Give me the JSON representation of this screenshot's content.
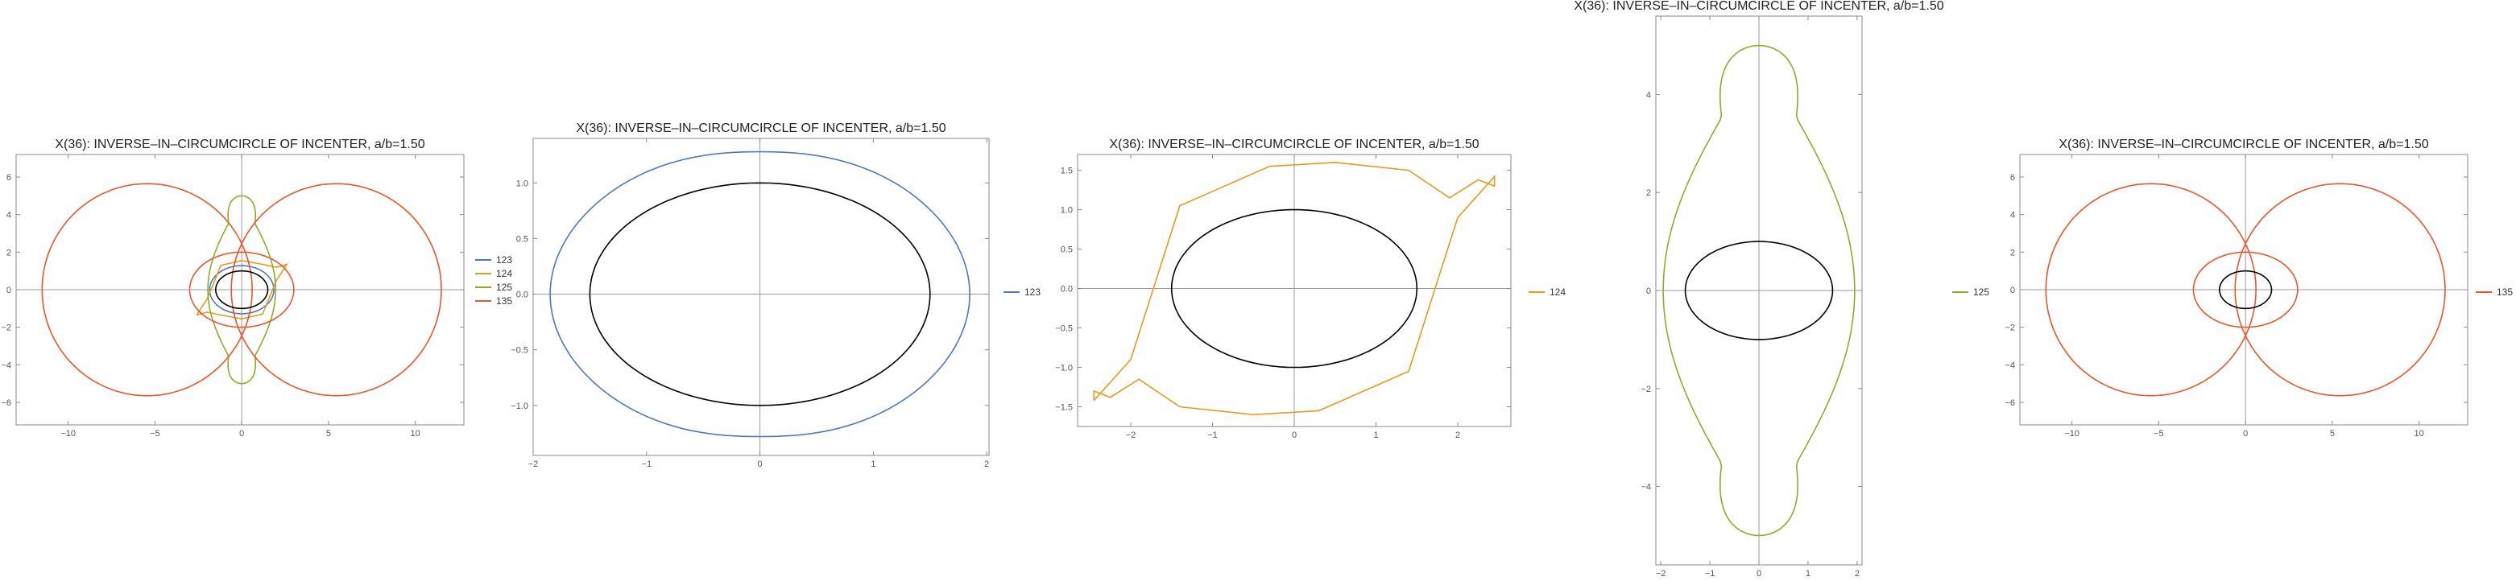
{
  "chart_data": [
    {
      "type": "line",
      "title": "X(36): INVERSE–IN–CIRCUMCIRCLE OF INCENTER, a/b=1.50",
      "xlim": [
        -13.0,
        12.8
      ],
      "ylim": [
        -7.2,
        7.2
      ],
      "xticks": [
        -10,
        -5,
        0,
        5,
        10
      ],
      "yticks": [
        -6,
        -4,
        -2,
        0,
        2,
        4,
        6
      ],
      "grid": false,
      "legend_position": "right",
      "legend": [
        "123",
        "124",
        "125",
        "135"
      ],
      "series": [
        {
          "name": "123",
          "color": "#4a78c4",
          "shape": "ellipse",
          "rx": 1.85,
          "ry": 1.28
        },
        {
          "name": "124",
          "color": "#e69a1e",
          "shape": "skewloop",
          "x": [
            -2.6,
            -2.0,
            -1.2,
            0,
            1.2,
            2.0,
            2.6
          ],
          "y": [
            -1.35,
            -0.5,
            1.3,
            1.55,
            1.35,
            1.2,
            1.35
          ]
        },
        {
          "name": "125",
          "color": "#8aae2a",
          "shape": "figure-eight",
          "y_extent": [
            -5.0,
            5.0
          ],
          "x_extent": [
            -1.95,
            1.95
          ]
        },
        {
          "name": "135",
          "color": "#e8562a",
          "shape": "double-circle",
          "x_extent": [
            -11.5,
            11.5
          ],
          "y_extent": [
            -5.6,
            5.6
          ]
        },
        {
          "name": "",
          "color": "#000000",
          "shape": "ellipse",
          "rx": 1.5,
          "ry": 1.0
        }
      ]
    },
    {
      "type": "line",
      "title": "X(36): INVERSE–IN–CIRCUMCIRCLE OF INCENTER, a/b=1.50",
      "xlim": [
        -2.0,
        2.02
      ],
      "ylim": [
        -1.45,
        1.4
      ],
      "xticks": [
        -2,
        -1,
        0,
        1,
        2
      ],
      "yticks": [
        -1.0,
        -0.5,
        0.0,
        0.5,
        1.0
      ],
      "grid": false,
      "legend_position": "right",
      "legend": [
        "123"
      ],
      "series": [
        {
          "name": "123",
          "color": "#4a78c4",
          "shape": "lemon",
          "x_extent": [
            -1.85,
            1.85
          ],
          "y_extent": [
            -1.28,
            1.28
          ]
        },
        {
          "name": "",
          "color": "#000000",
          "shape": "ellipse",
          "rx": 1.5,
          "ry": 1.0
        }
      ]
    },
    {
      "type": "line",
      "title": "X(36): INVERSE–IN–CIRCUMCIRCLE OF INCENTER, a/b=1.50",
      "xlim": [
        -2.65,
        2.65
      ],
      "ylim": [
        -1.75,
        1.7
      ],
      "xticks": [
        -2,
        -1,
        0,
        1,
        2
      ],
      "yticks": [
        -1.5,
        -1.0,
        -0.5,
        0.0,
        0.5,
        1.0,
        1.5
      ],
      "grid": false,
      "legend_position": "right",
      "legend": [
        "124"
      ],
      "series": [
        {
          "name": "124",
          "color": "#e69a1e",
          "shape": "skewloop",
          "x": [
            -2.45,
            -2.0,
            -1.4,
            -0.3,
            0.5,
            1.4,
            1.9,
            2.25,
            2.45
          ],
          "y": [
            -1.42,
            -0.9,
            1.05,
            1.55,
            1.6,
            1.5,
            1.15,
            1.38,
            1.3
          ]
        },
        {
          "name": "",
          "color": "#000000",
          "shape": "ellipse",
          "rx": 1.5,
          "ry": 1.0
        }
      ]
    },
    {
      "type": "line",
      "title": "X(36): INVERSE–IN–CIRCUMCIRCLE OF INCENTER, a/b=1.50",
      "xlim": [
        -2.1,
        2.1
      ],
      "ylim": [
        -5.6,
        5.6
      ],
      "xticks": [
        -2,
        -1,
        0,
        1,
        2
      ],
      "yticks": [
        -4,
        -2,
        0,
        2,
        4
      ],
      "grid": false,
      "legend_position": "left",
      "legend": [
        "125"
      ],
      "series": [
        {
          "name": "125",
          "color": "#8aae2a",
          "shape": "figure-eight",
          "y_extent": [
            -5.0,
            5.0
          ],
          "x_extent": [
            -1.95,
            1.95
          ]
        },
        {
          "name": "",
          "color": "#000000",
          "shape": "ellipse",
          "rx": 1.5,
          "ry": 1.0
        }
      ]
    },
    {
      "type": "line",
      "title": "X(36): INVERSE–IN–CIRCUMCIRCLE OF INCENTER, a/b=1.50",
      "xlim": [
        -13.0,
        12.8
      ],
      "ylim": [
        -7.2,
        7.2
      ],
      "xticks": [
        -10,
        -5,
        0,
        5,
        10
      ],
      "yticks": [
        -6,
        -4,
        -2,
        0,
        2,
        4,
        6
      ],
      "grid": false,
      "legend_position": "right",
      "legend": [
        "135"
      ],
      "series": [
        {
          "name": "135",
          "color": "#e8562a",
          "shape": "double-circle",
          "x_extent": [
            -11.5,
            11.5
          ],
          "y_extent": [
            -5.6,
            5.6
          ]
        },
        {
          "name": "",
          "color": "#000000",
          "shape": "ellipse",
          "rx": 1.5,
          "ry": 1.0
        }
      ]
    }
  ]
}
